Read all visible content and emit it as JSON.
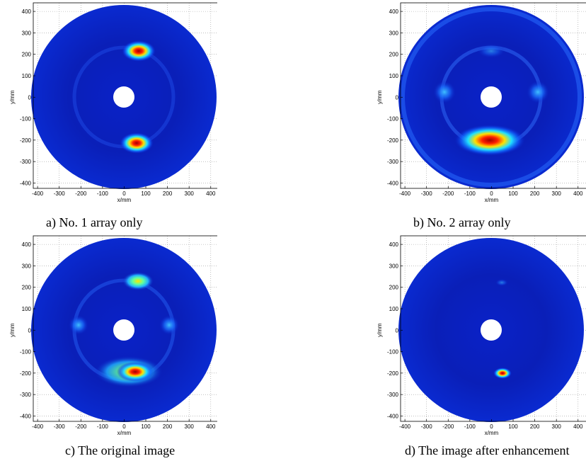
{
  "chart_data": [
    {
      "type": "heatmap",
      "caption": "a) No. 1 array only",
      "xlabel": "x/mm",
      "ylabel": "y/mm",
      "xlim": [
        -420,
        440
      ],
      "ylim": [
        -425,
        440
      ],
      "xticks": [
        -400,
        -300,
        -200,
        -100,
        0,
        100,
        200,
        300,
        400
      ],
      "yticks": [
        -400,
        -300,
        -200,
        -100,
        0,
        100,
        200,
        300,
        400
      ],
      "grid": true
    },
    {
      "type": "heatmap",
      "caption": "b) No. 2 array only",
      "xlabel": "x/mm",
      "ylabel": "y/mm",
      "xlim": [
        -420,
        440
      ],
      "ylim": [
        -425,
        440
      ],
      "xticks": [
        -400,
        -300,
        -200,
        -100,
        0,
        100,
        200,
        300,
        400
      ],
      "yticks": [
        -400,
        -300,
        -200,
        -100,
        0,
        100,
        200,
        300,
        400
      ],
      "grid": true
    },
    {
      "type": "heatmap",
      "caption": "c) The original image",
      "xlabel": "x/mm",
      "ylabel": "y/mm",
      "xlim": [
        -420,
        440
      ],
      "ylim": [
        -425,
        440
      ],
      "xticks": [
        -400,
        -300,
        -200,
        -100,
        0,
        100,
        200,
        300,
        400
      ],
      "yticks": [
        -400,
        -300,
        -200,
        -100,
        0,
        100,
        200,
        300,
        400
      ],
      "grid": true
    },
    {
      "type": "heatmap",
      "caption": "d) The image after enhancement",
      "xlabel": "x/mm",
      "ylabel": "y/mm",
      "xlim": [
        -420,
        440
      ],
      "ylim": [
        -425,
        440
      ],
      "xticks": [
        -400,
        -300,
        -200,
        -100,
        0,
        100,
        200,
        300,
        400
      ],
      "yticks": [
        -400,
        -300,
        -200,
        -100,
        0,
        100,
        200,
        300,
        400
      ],
      "grid": true
    }
  ]
}
